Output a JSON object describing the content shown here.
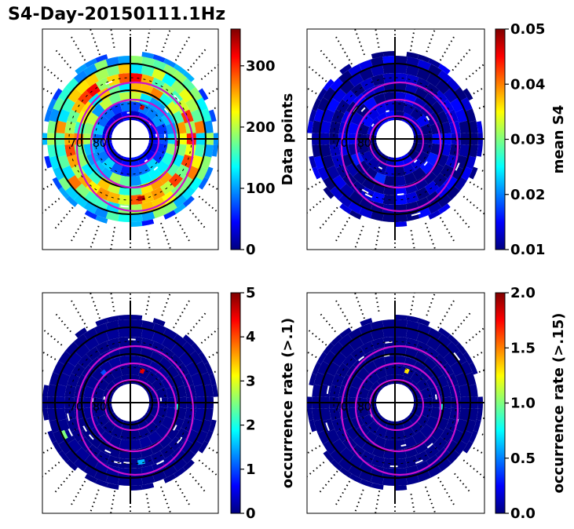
{
  "figure": {
    "title": "S4-Day-20150111.1Hz"
  },
  "colormap": {
    "name": "jet",
    "stops": [
      "#00007f",
      "#0000ff",
      "#007fff",
      "#00ffff",
      "#7fff7f",
      "#ffff00",
      "#ff7f00",
      "#ff0000",
      "#7f0000"
    ]
  },
  "overlay": {
    "contour_color": "#cc10cc",
    "grid_color": "#000000",
    "circle_labels": [
      "70",
      "80"
    ]
  },
  "chart_data": [
    {
      "type": "heatmap",
      "projection": "polar",
      "panel": "top-left",
      "title": "",
      "colorbar": {
        "label": "Data points",
        "range": [
          0,
          360
        ],
        "ticks": [
          0,
          100,
          200,
          300
        ]
      },
      "ring_values": [
        40,
        90,
        150,
        200,
        230,
        200,
        140,
        80
      ],
      "hotspot_values": [
        330,
        350,
        340
      ]
    },
    {
      "type": "heatmap",
      "projection": "polar",
      "panel": "top-right",
      "title": "",
      "colorbar": {
        "label": "mean S4",
        "range": [
          0.01,
          0.05
        ],
        "ticks": [
          0.01,
          0.02,
          0.03,
          0.04,
          0.05
        ]
      },
      "ring_values": [
        0.011,
        0.011,
        0.012,
        0.011,
        0.011,
        0.011,
        0.011,
        0.011
      ],
      "hotspot_values": []
    },
    {
      "type": "heatmap",
      "projection": "polar",
      "panel": "bottom-left",
      "title": "",
      "colorbar": {
        "label": "occurrence rate (>.1)",
        "range": [
          0,
          5
        ],
        "ticks": [
          0,
          1,
          2,
          3,
          4,
          5
        ]
      },
      "ring_values": [
        0.05,
        0.05,
        0.1,
        0.05,
        0.05,
        0.1,
        0.05,
        0.05
      ],
      "hotspot_values": [
        4.5,
        2.0,
        1.5,
        2.5,
        1.0
      ]
    },
    {
      "type": "heatmap",
      "projection": "polar",
      "panel": "bottom-right",
      "title": "",
      "colorbar": {
        "label": "occurrence rate (>.15)",
        "range": [
          0.0,
          2.0
        ],
        "ticks": [
          0.0,
          0.5,
          1.0,
          1.5,
          2.0
        ]
      },
      "ring_values": [
        0.02,
        0.02,
        0.02,
        0.02,
        0.02,
        0.02,
        0.02,
        0.02
      ],
      "hotspot_values": [
        1.3,
        0.8
      ]
    }
  ]
}
